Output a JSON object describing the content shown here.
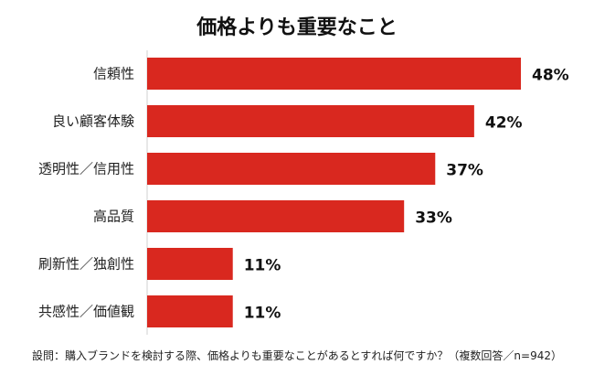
{
  "chart_data": {
    "type": "bar",
    "orientation": "horizontal",
    "title": "価格よりも重要なこと",
    "categories": [
      "信頼性",
      "良い顧客体験",
      "透明性／信用性",
      "高品質",
      "刷新性／独創性",
      "共感性／価値観"
    ],
    "values": [
      48,
      42,
      37,
      33,
      11,
      11
    ],
    "value_labels": [
      "48%",
      "42%",
      "37%",
      "33%",
      "11%",
      "11%"
    ],
    "unit": "%",
    "xlim": [
      0,
      48
    ],
    "grid": false,
    "bar_color": "#d9281f",
    "note": "設問：購入ブランドを検討する際、価格よりも重要なことがあるとすれば何ですか？（複数回答／n=942）"
  }
}
